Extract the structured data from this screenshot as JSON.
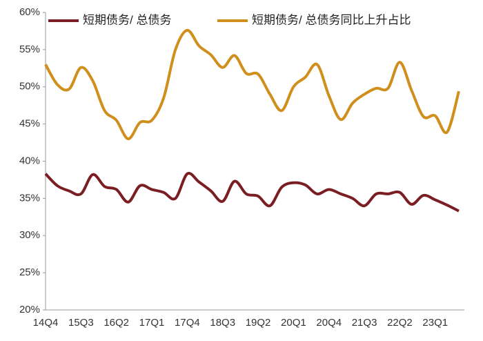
{
  "chart_data": {
    "type": "line",
    "categories": [
      "14Q4",
      null,
      null,
      "15Q3",
      null,
      null,
      "16Q2",
      null,
      null,
      "17Q1",
      null,
      null,
      "17Q4",
      null,
      null,
      "18Q3",
      null,
      null,
      "19Q2",
      null,
      null,
      "20Q1",
      null,
      null,
      "20Q4",
      null,
      null,
      "21Q3",
      null,
      null,
      "22Q2",
      null,
      null,
      "23Q1",
      null,
      null
    ],
    "series": [
      {
        "name": "短期债务/ 总债务",
        "color": "#7b1e24",
        "values": [
          38.3,
          36.7,
          36.0,
          35.6,
          38.2,
          36.6,
          36.2,
          34.5,
          36.7,
          36.2,
          35.8,
          35.0,
          38.3,
          37.2,
          36.0,
          34.6,
          37.3,
          35.6,
          35.3,
          34.0,
          36.5,
          37.1,
          36.8,
          35.6,
          36.2,
          35.6,
          35.0,
          34.0,
          35.6,
          35.6,
          35.8,
          34.2,
          35.4,
          34.8,
          34.1,
          33.3
        ]
      },
      {
        "name": "短期债务/ 总债务同比上升占比",
        "color": "#d08f1d",
        "values": [
          53.0,
          50.3,
          49.7,
          52.6,
          50.8,
          46.8,
          45.5,
          43.0,
          45.2,
          45.5,
          48.5,
          55.0,
          57.6,
          55.5,
          54.3,
          52.6,
          54.2,
          51.8,
          51.7,
          49.0,
          46.8,
          50.0,
          51.3,
          53.0,
          48.8,
          45.6,
          47.8,
          49.0,
          49.8,
          49.8,
          53.3,
          49.5,
          46.0,
          46.1,
          43.9,
          49.4
        ]
      }
    ],
    "ylim": [
      20,
      60
    ],
    "yticks": [
      {
        "value": 20,
        "label": "20%"
      },
      {
        "value": 25,
        "label": "25%"
      },
      {
        "value": 30,
        "label": "30%"
      },
      {
        "value": 35,
        "label": "35%"
      },
      {
        "value": 40,
        "label": "40%"
      },
      {
        "value": 45,
        "label": "45%"
      },
      {
        "value": 50,
        "label": "50%"
      },
      {
        "value": 55,
        "label": "55%"
      },
      {
        "value": 60,
        "label": "60%"
      }
    ],
    "legend": "top"
  }
}
